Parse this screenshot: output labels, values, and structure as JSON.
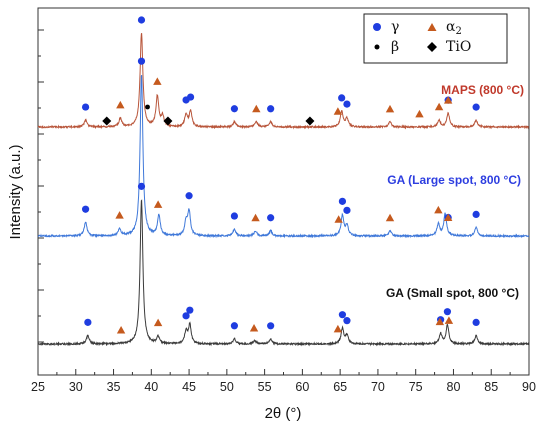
{
  "chart_data": {
    "type": "line",
    "xlabel": "2θ (°)",
    "ylabel": "Intensity (a.u.)",
    "xlim": [
      25,
      90
    ],
    "xticks": [
      25,
      30,
      35,
      40,
      45,
      50,
      55,
      60,
      65,
      70,
      75,
      80,
      85,
      90
    ],
    "y_tick_labels": "none",
    "grid": false,
    "legend_placement": "top-right",
    "legend": [
      {
        "label": "γ",
        "marker": "circle",
        "color": "#1f3de0"
      },
      {
        "label": "α2",
        "marker": "triangle",
        "color": "#c55a1e"
      },
      {
        "label": "β",
        "marker": "dot",
        "color": "#000000"
      },
      {
        "label": "TiO",
        "marker": "diamond",
        "color": "#000000"
      }
    ],
    "series": [
      {
        "name": "MAPS (800 °C)",
        "color": "#b8553a",
        "label_color": "#c0392b",
        "baseline": 2.0,
        "peaks": [
          [
            31.3,
            0.04
          ],
          [
            35.9,
            0.05
          ],
          [
            38.7,
            0.55
          ],
          [
            40.8,
            0.18
          ],
          [
            41.5,
            0.06
          ],
          [
            44.6,
            0.07
          ],
          [
            45.2,
            0.09
          ],
          [
            51.0,
            0.03
          ],
          [
            53.9,
            0.03
          ],
          [
            55.8,
            0.03
          ],
          [
            65.2,
            0.09
          ],
          [
            65.9,
            0.05
          ],
          [
            71.6,
            0.03
          ],
          [
            78.1,
            0.04
          ],
          [
            79.3,
            0.08
          ],
          [
            83.0,
            0.04
          ]
        ],
        "gamma_peaks": [
          31.3,
          38.7,
          44.6,
          45.2,
          51.0,
          55.8,
          65.2,
          65.9,
          79.3,
          83.0
        ],
        "alpha2_peaks": [
          35.9,
          40.8,
          53.9,
          64.7,
          71.6,
          75.5,
          78.1,
          79.3
        ],
        "beta_peaks": [
          39.5
        ],
        "tio_peaks": [
          34.1,
          42.2,
          61.0
        ]
      },
      {
        "name": "GA (Large spot, 800 °C)",
        "color": "#3f78d9",
        "label_color": "#2d3ee0",
        "baseline": 1.0,
        "peaks": [
          [
            31.3,
            0.08
          ],
          [
            35.8,
            0.04
          ],
          [
            38.7,
            0.95
          ],
          [
            41.0,
            0.12
          ],
          [
            44.6,
            0.08
          ],
          [
            45.0,
            0.14
          ],
          [
            51.0,
            0.04
          ],
          [
            53.8,
            0.03
          ],
          [
            55.8,
            0.03
          ],
          [
            65.3,
            0.12
          ],
          [
            65.9,
            0.06
          ],
          [
            71.6,
            0.03
          ],
          [
            78.0,
            0.07
          ],
          [
            78.9,
            0.13
          ],
          [
            83.0,
            0.05
          ]
        ],
        "gamma_peaks": [
          31.3,
          38.7,
          45.0,
          51.0,
          55.8,
          65.3,
          65.9,
          79.3,
          83.0
        ],
        "alpha2_peaks": [
          35.8,
          40.9,
          53.8,
          64.8,
          71.6,
          78.0,
          79.3
        ],
        "beta_peaks": [],
        "tio_peaks": []
      },
      {
        "name": "GA (Small spot, 800 °C)",
        "color": "#3a3a3a",
        "label_color": "#111111",
        "baseline": 0.0,
        "peaks": [
          [
            31.6,
            0.05
          ],
          [
            38.7,
            0.85
          ],
          [
            40.9,
            0.04
          ],
          [
            44.6,
            0.07
          ],
          [
            45.1,
            0.11
          ],
          [
            51.0,
            0.03
          ],
          [
            53.7,
            0.02
          ],
          [
            55.8,
            0.03
          ],
          [
            65.3,
            0.09
          ],
          [
            65.9,
            0.05
          ],
          [
            78.3,
            0.06
          ],
          [
            79.2,
            0.11
          ],
          [
            83.0,
            0.05
          ]
        ],
        "gamma_peaks": [
          31.6,
          38.7,
          44.6,
          45.1,
          51.0,
          55.8,
          65.3,
          65.9,
          78.3,
          79.2,
          83.0
        ],
        "alpha2_peaks": [
          36.0,
          40.9,
          53.6,
          64.7,
          78.2,
          79.4
        ],
        "beta_peaks": [],
        "tio_peaks": []
      }
    ]
  }
}
